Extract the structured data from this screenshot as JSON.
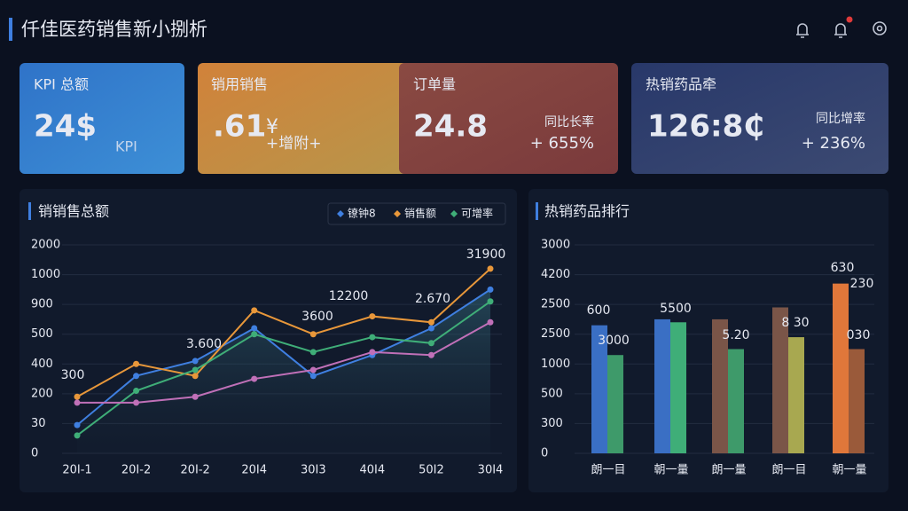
{
  "header": {
    "title": "仟佳医药销售新小捌析"
  },
  "kpis": [
    {
      "label": "KPI 总额",
      "value": "24$",
      "badge": "KPI"
    },
    {
      "label": "销用销售",
      "value": ".61",
      "unit": "¥",
      "change": "+增附+"
    },
    {
      "label": "订单量",
      "value": "24.8",
      "change_label": "同比长率",
      "change": "+ 655%"
    },
    {
      "label": "热销药品牵",
      "value": "126:8₵",
      "change_label": "同比增率",
      "change": "+ 236%"
    }
  ],
  "chart_data": [
    {
      "type": "line",
      "title": "销销售总额",
      "categories": [
        "20I-1",
        "20I-2",
        "20I-2",
        "20I4",
        "30I3",
        "40I4",
        "50I2",
        "30I4"
      ],
      "y_labels": [
        "0",
        "30",
        "200",
        "400",
        "500",
        "900",
        "1000",
        "2000"
      ],
      "ylim": [
        0,
        7
      ],
      "series": [
        {
          "name": "镣钟8",
          "color": "#3f7fe0",
          "values": [
            0.95,
            2.6,
            3.1,
            4.2,
            2.6,
            3.3,
            4.2,
            5.5
          ]
        },
        {
          "name": "销售额",
          "color": "#e8973a",
          "values": [
            1.9,
            3.0,
            2.6,
            4.8,
            4.0,
            4.6,
            4.4,
            6.2
          ]
        },
        {
          "name": "可增率",
          "color": "#3fae78",
          "values": [
            0.6,
            2.1,
            2.8,
            4.0,
            3.4,
            3.9,
            3.7,
            5.1
          ]
        },
        {
          "name": "",
          "color": "#c070b8",
          "values": [
            1.7,
            1.7,
            1.9,
            2.5,
            2.8,
            3.4,
            3.3,
            4.4
          ]
        }
      ],
      "annotations": [
        {
          "text": "300",
          "color": "#e0503a"
        },
        {
          "text": "3.600",
          "color": "#c8ccd8"
        },
        {
          "text": "3600",
          "color": "#c8ccd8"
        },
        {
          "text": "12200",
          "color": "#c8ccd8"
        },
        {
          "text": "2.670",
          "color": "#c8ccd8"
        },
        {
          "text": "31900",
          "color": "#c8ccd8"
        }
      ]
    },
    {
      "type": "bar",
      "title": "热销药品排行",
      "categories": [
        "朗一目",
        "朝一量",
        "朗一量",
        "朗一目",
        "朝一量"
      ],
      "y_labels": [
        "0",
        "300",
        "500",
        "1000",
        "2500",
        "2500",
        "4200",
        "3000"
      ],
      "ylim": [
        0,
        7
      ],
      "series": [
        {
          "colors": [
            "#3a6fc4",
            "#3a6fc4",
            "#7a5548",
            "#7a5548",
            "#e0773a"
          ],
          "values": [
            4.3,
            4.5,
            4.5,
            4.9,
            5.7
          ]
        },
        {
          "colors": [
            "#3e9a6a",
            "#3fae78",
            "#3e9a6a",
            "#a8a850",
            "#9a5a3a"
          ],
          "values": [
            3.3,
            4.4,
            3.5,
            3.9,
            3.5
          ]
        }
      ],
      "annotations": [
        {
          "text": "600",
          "color": "#5f9aff"
        },
        {
          "text": "3000",
          "color": "#4fc88a"
        },
        {
          "text": "5500",
          "color": "#4fc88a"
        },
        {
          "text": "5.20",
          "color": "#7fb0ff"
        },
        {
          "text": "8 30",
          "color": "#4fc88a"
        },
        {
          "text": "630",
          "color": "#f09050"
        },
        {
          "text": "230",
          "color": "#f09050"
        },
        {
          "text": "030",
          "color": "#f09050"
        }
      ]
    }
  ]
}
